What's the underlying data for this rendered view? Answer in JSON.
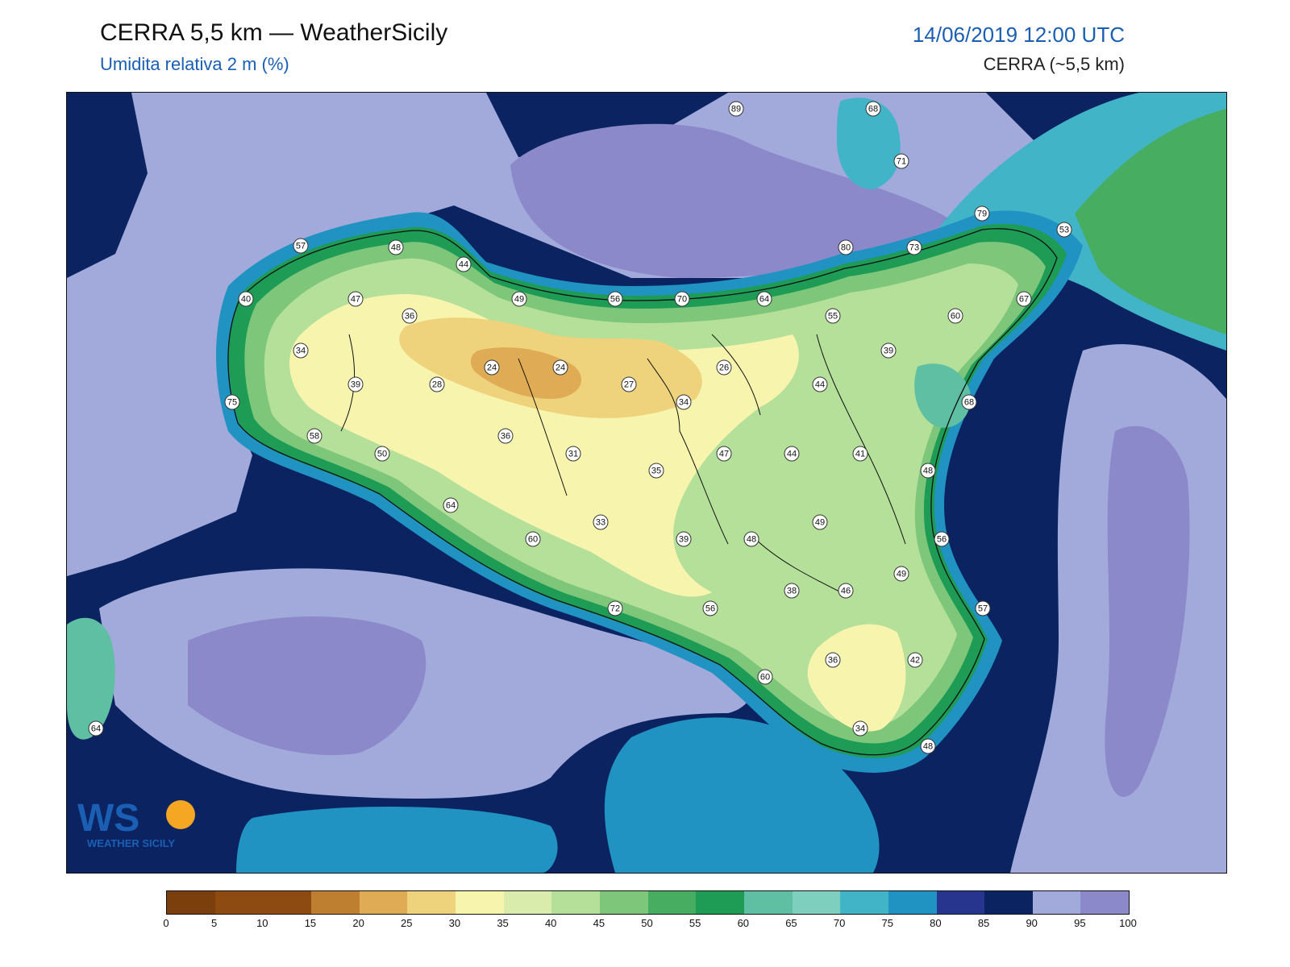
{
  "header": {
    "title": "CERRA 5,5 km — WeatherSicily",
    "subtitle": "Umidita relativa 2 m (%)",
    "datetime": "14/06/2019 12:00 UTC",
    "model": "CERRA (~5,5 km)"
  },
  "logo": {
    "text": "WEATHER SICILY",
    "mark": "WS"
  },
  "colorbar": {
    "ticks": [
      "0",
      "5",
      "10",
      "15",
      "20",
      "25",
      "30",
      "35",
      "40",
      "45",
      "50",
      "55",
      "60",
      "65",
      "70",
      "75",
      "80",
      "85",
      "90",
      "95",
      "100"
    ],
    "colors": [
      "#7a3f0c",
      "#8d4b12",
      "#8d4b12",
      "#bf7f30",
      "#dfab55",
      "#efd27c",
      "#f7f5ad",
      "#d9ecab",
      "#b4e09a",
      "#7dc67a",
      "#47ad60",
      "#1e9b55",
      "#5fbfa3",
      "#7fcfbf",
      "#42b4c8",
      "#2193c2",
      "#27358f",
      "#0b2461",
      "#a2a9db",
      "#8b89c9"
    ]
  },
  "stations": [
    {
      "v": "89"
    },
    {
      "v": "68"
    },
    {
      "v": "71"
    },
    {
      "v": "79"
    },
    {
      "v": "53"
    },
    {
      "v": "57"
    },
    {
      "v": "48"
    },
    {
      "v": "44"
    },
    {
      "v": "40"
    },
    {
      "v": "47"
    },
    {
      "v": "36"
    },
    {
      "v": "49"
    },
    {
      "v": "56"
    },
    {
      "v": "70"
    },
    {
      "v": "64"
    },
    {
      "v": "80"
    },
    {
      "v": "73"
    },
    {
      "v": "55"
    },
    {
      "v": "60"
    },
    {
      "v": "67"
    },
    {
      "v": "34"
    },
    {
      "v": "39"
    },
    {
      "v": "28"
    },
    {
      "v": "24"
    },
    {
      "v": "24"
    },
    {
      "v": "27"
    },
    {
      "v": "26"
    },
    {
      "v": "34"
    },
    {
      "v": "44"
    },
    {
      "v": "39"
    },
    {
      "v": "68"
    },
    {
      "v": "75"
    },
    {
      "v": "58"
    },
    {
      "v": "50"
    },
    {
      "v": "36"
    },
    {
      "v": "31"
    },
    {
      "v": "35"
    },
    {
      "v": "47"
    },
    {
      "v": "44"
    },
    {
      "v": "41"
    },
    {
      "v": "48"
    },
    {
      "v": "64"
    },
    {
      "v": "33"
    },
    {
      "v": "60"
    },
    {
      "v": "39"
    },
    {
      "v": "48"
    },
    {
      "v": "49"
    },
    {
      "v": "56"
    },
    {
      "v": "49"
    },
    {
      "v": "38"
    },
    {
      "v": "46"
    },
    {
      "v": "72"
    },
    {
      "v": "56"
    },
    {
      "v": "57"
    },
    {
      "v": "60"
    },
    {
      "v": "36"
    },
    {
      "v": "42"
    },
    {
      "v": "34"
    },
    {
      "v": "48"
    },
    {
      "v": "64"
    }
  ]
}
